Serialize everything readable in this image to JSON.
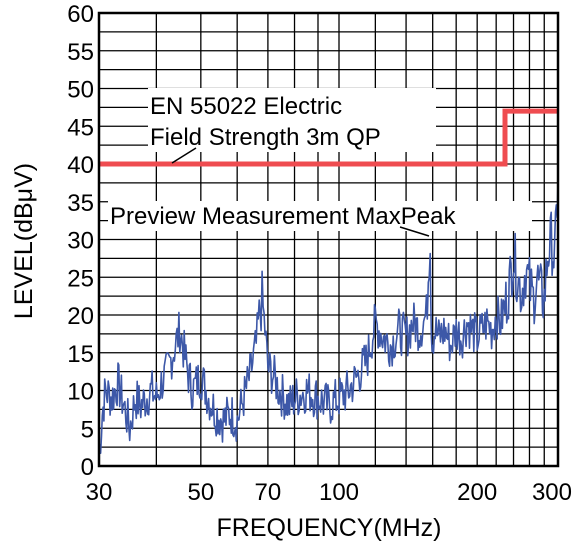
{
  "chart_data": {
    "type": "line",
    "title": "",
    "xlabel": "FREQUENCY(MHz)",
    "ylabel": "LEVEL(dBμV)",
    "xscale": "log",
    "xlim": [
      30,
      300
    ],
    "ylim": [
      0,
      60
    ],
    "grid": true,
    "x_ticks": [
      30,
      50,
      70,
      100,
      200,
      300
    ],
    "x_tick_labels": [
      "30",
      "50",
      "70",
      "100",
      "200",
      "300"
    ],
    "y_ticks": [
      0,
      5,
      10,
      15,
      20,
      25,
      30,
      35,
      40,
      45,
      50,
      55,
      60
    ],
    "y_tick_labels": [
      "0",
      "5",
      "10",
      "15",
      "20",
      "25",
      "30",
      "35",
      "40",
      "45",
      "50",
      "55",
      "60"
    ],
    "colors": {
      "limit": "#ef4c50",
      "measurement": "#3d58a8",
      "grid": "#000000"
    },
    "annotations": {
      "limit_line1": "EN 55022 Electric",
      "limit_line2": "Field Strength 3m QP",
      "measurement": "Preview Measurement MaxPeak"
    },
    "series": [
      {
        "name": "EN 55022 Electric Field Strength 3m QP",
        "color": "#ef4c50",
        "x": [
          30,
          230,
          230,
          300
        ],
        "y": [
          40,
          40,
          47,
          47
        ]
      },
      {
        "name": "Preview Measurement MaxPeak",
        "color": "#3d58a8",
        "x": [
          30,
          30.5,
          31,
          32,
          33,
          34,
          35,
          36,
          37,
          38,
          39,
          40,
          41,
          42,
          43,
          44,
          45,
          46,
          47,
          48,
          50,
          52,
          54,
          56,
          58,
          60,
          62,
          64,
          66,
          67,
          68,
          69,
          70,
          72,
          74,
          76,
          78,
          80,
          85,
          90,
          95,
          100,
          105,
          110,
          115,
          118,
          120,
          125,
          130,
          135,
          140,
          145,
          150,
          155,
          158,
          159,
          160,
          162,
          165,
          170,
          175,
          180,
          185,
          190,
          195,
          200,
          205,
          210,
          215,
          220,
          225,
          230,
          235,
          240,
          245,
          250,
          255,
          260,
          265,
          270,
          275,
          280,
          285,
          290,
          295,
          300
        ],
        "y": [
          1,
          7,
          10,
          9,
          11,
          8,
          5,
          9,
          8,
          9,
          10,
          9,
          11,
          12,
          14,
          16,
          18,
          15,
          12,
          10,
          12,
          9,
          7,
          6,
          7,
          6,
          9,
          12,
          16,
          20,
          22,
          18,
          13,
          12,
          10,
          9,
          8,
          9,
          10,
          9,
          8,
          9,
          10,
          12,
          14,
          17,
          19,
          17,
          16,
          18,
          17,
          19,
          18,
          20,
          31,
          18,
          17,
          18,
          17,
          18,
          16,
          18,
          17,
          19,
          18,
          17,
          18,
          19,
          18,
          20,
          19,
          21,
          24,
          28,
          25,
          23,
          26,
          24,
          22,
          25,
          23,
          22,
          28,
          30,
          27,
          38
        ]
      }
    ]
  }
}
